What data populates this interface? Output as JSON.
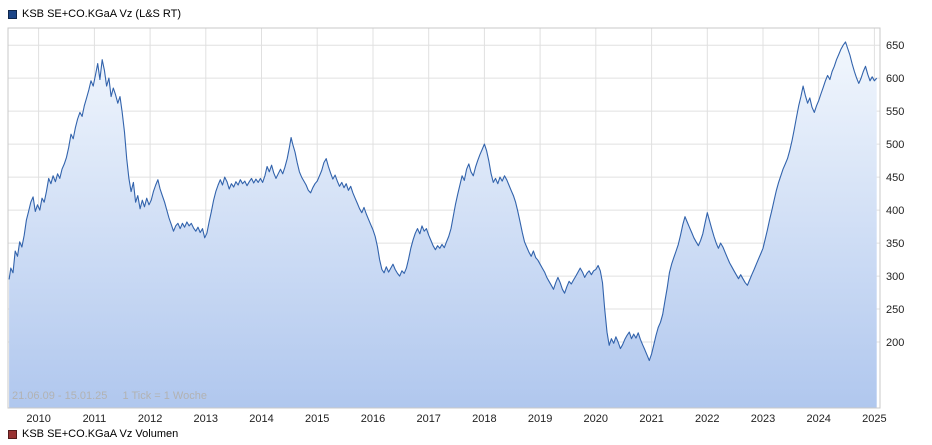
{
  "legend_top": {
    "label": "KSB SE+CO.KGaA Vz (L&S RT)",
    "swatch_color": "#1c4587"
  },
  "legend_bottom": {
    "label": "KSB SE+CO.KGaA Vz Volumen",
    "swatch_color": "#993333"
  },
  "annotation": {
    "period": "21.06.09 - 15.01.25",
    "tick_info": "1 Tick = 1 Woche"
  },
  "chart_data": {
    "type": "area",
    "title": "KSB SE+CO.KGaA Vz (L&S RT)",
    "xlabel": "",
    "ylabel": "",
    "legend_position": "top-left",
    "grid": true,
    "x_ticks": [
      2010,
      2011,
      2012,
      2013,
      2014,
      2015,
      2016,
      2017,
      2018,
      2019,
      2020,
      2021,
      2022,
      2023,
      2024,
      2025
    ],
    "y_ticks": [
      200,
      250,
      300,
      350,
      400,
      450,
      500,
      550,
      600,
      650
    ],
    "xlim": [
      2009.45,
      2025.1
    ],
    "ylim": [
      100,
      676
    ],
    "line_color": "#3263ac",
    "fill_top": "#f2f7fd",
    "fill_bottom": "#b0c7ee",
    "grid_color": "#e0e0e0",
    "border_color": "#c8c8c8",
    "axis_text_color": "#222222",
    "points": [
      [
        2009.47,
        295
      ],
      [
        2009.5,
        312
      ],
      [
        2009.54,
        305
      ],
      [
        2009.58,
        338
      ],
      [
        2009.62,
        330
      ],
      [
        2009.66,
        352
      ],
      [
        2009.7,
        344
      ],
      [
        2009.74,
        362
      ],
      [
        2009.78,
        385
      ],
      [
        2009.82,
        398
      ],
      [
        2009.86,
        412
      ],
      [
        2009.9,
        420
      ],
      [
        2009.94,
        398
      ],
      [
        2009.98,
        408
      ],
      [
        2010.02,
        400
      ],
      [
        2010.06,
        418
      ],
      [
        2010.1,
        412
      ],
      [
        2010.14,
        428
      ],
      [
        2010.18,
        448
      ],
      [
        2010.22,
        440
      ],
      [
        2010.26,
        452
      ],
      [
        2010.3,
        443
      ],
      [
        2010.34,
        455
      ],
      [
        2010.38,
        448
      ],
      [
        2010.42,
        462
      ],
      [
        2010.46,
        470
      ],
      [
        2010.5,
        480
      ],
      [
        2010.54,
        495
      ],
      [
        2010.58,
        515
      ],
      [
        2010.62,
        508
      ],
      [
        2010.66,
        525
      ],
      [
        2010.7,
        538
      ],
      [
        2010.74,
        548
      ],
      [
        2010.78,
        542
      ],
      [
        2010.82,
        558
      ],
      [
        2010.86,
        570
      ],
      [
        2010.9,
        582
      ],
      [
        2010.94,
        596
      ],
      [
        2010.98,
        588
      ],
      [
        2011.02,
        605
      ],
      [
        2011.06,
        622
      ],
      [
        2011.1,
        598
      ],
      [
        2011.14,
        628
      ],
      [
        2011.18,
        612
      ],
      [
        2011.22,
        588
      ],
      [
        2011.26,
        600
      ],
      [
        2011.3,
        572
      ],
      [
        2011.34,
        585
      ],
      [
        2011.38,
        575
      ],
      [
        2011.42,
        562
      ],
      [
        2011.46,
        572
      ],
      [
        2011.5,
        548
      ],
      [
        2011.54,
        518
      ],
      [
        2011.58,
        478
      ],
      [
        2011.62,
        448
      ],
      [
        2011.66,
        428
      ],
      [
        2011.7,
        442
      ],
      [
        2011.74,
        412
      ],
      [
        2011.78,
        422
      ],
      [
        2011.82,
        402
      ],
      [
        2011.86,
        415
      ],
      [
        2011.9,
        405
      ],
      [
        2011.94,
        418
      ],
      [
        2011.98,
        408
      ],
      [
        2012.02,
        415
      ],
      [
        2012.06,
        428
      ],
      [
        2012.1,
        438
      ],
      [
        2012.14,
        446
      ],
      [
        2012.18,
        432
      ],
      [
        2012.22,
        422
      ],
      [
        2012.26,
        412
      ],
      [
        2012.3,
        400
      ],
      [
        2012.34,
        388
      ],
      [
        2012.38,
        378
      ],
      [
        2012.42,
        368
      ],
      [
        2012.46,
        376
      ],
      [
        2012.5,
        380
      ],
      [
        2012.54,
        372
      ],
      [
        2012.58,
        380
      ],
      [
        2012.62,
        374
      ],
      [
        2012.66,
        382
      ],
      [
        2012.7,
        376
      ],
      [
        2012.74,
        380
      ],
      [
        2012.78,
        373
      ],
      [
        2012.82,
        368
      ],
      [
        2012.86,
        374
      ],
      [
        2012.9,
        366
      ],
      [
        2012.94,
        372
      ],
      [
        2012.98,
        358
      ],
      [
        2013.02,
        365
      ],
      [
        2013.06,
        382
      ],
      [
        2013.1,
        398
      ],
      [
        2013.14,
        415
      ],
      [
        2013.18,
        428
      ],
      [
        2013.22,
        438
      ],
      [
        2013.26,
        446
      ],
      [
        2013.3,
        438
      ],
      [
        2013.34,
        450
      ],
      [
        2013.38,
        443
      ],
      [
        2013.42,
        432
      ],
      [
        2013.46,
        440
      ],
      [
        2013.5,
        435
      ],
      [
        2013.54,
        443
      ],
      [
        2013.58,
        438
      ],
      [
        2013.62,
        446
      ],
      [
        2013.66,
        440
      ],
      [
        2013.7,
        444
      ],
      [
        2013.74,
        437
      ],
      [
        2013.78,
        443
      ],
      [
        2013.82,
        448
      ],
      [
        2013.86,
        441
      ],
      [
        2013.9,
        447
      ],
      [
        2013.94,
        442
      ],
      [
        2013.98,
        448
      ],
      [
        2014.02,
        442
      ],
      [
        2014.06,
        452
      ],
      [
        2014.1,
        466
      ],
      [
        2014.14,
        458
      ],
      [
        2014.18,
        468
      ],
      [
        2014.22,
        456
      ],
      [
        2014.26,
        448
      ],
      [
        2014.3,
        455
      ],
      [
        2014.34,
        462
      ],
      [
        2014.38,
        455
      ],
      [
        2014.42,
        465
      ],
      [
        2014.46,
        478
      ],
      [
        2014.5,
        495
      ],
      [
        2014.53,
        510
      ],
      [
        2014.56,
        500
      ],
      [
        2014.6,
        488
      ],
      [
        2014.64,
        472
      ],
      [
        2014.68,
        458
      ],
      [
        2014.72,
        450
      ],
      [
        2014.76,
        444
      ],
      [
        2014.8,
        438
      ],
      [
        2014.84,
        430
      ],
      [
        2014.88,
        426
      ],
      [
        2014.92,
        434
      ],
      [
        2014.96,
        440
      ],
      [
        2015.0,
        444
      ],
      [
        2015.04,
        452
      ],
      [
        2015.08,
        460
      ],
      [
        2015.12,
        472
      ],
      [
        2015.16,
        478
      ],
      [
        2015.2,
        466
      ],
      [
        2015.24,
        456
      ],
      [
        2015.28,
        447
      ],
      [
        2015.32,
        453
      ],
      [
        2015.36,
        444
      ],
      [
        2015.4,
        436
      ],
      [
        2015.44,
        442
      ],
      [
        2015.48,
        434
      ],
      [
        2015.52,
        440
      ],
      [
        2015.56,
        430
      ],
      [
        2015.6,
        436
      ],
      [
        2015.64,
        426
      ],
      [
        2015.68,
        418
      ],
      [
        2015.72,
        410
      ],
      [
        2015.76,
        402
      ],
      [
        2015.8,
        396
      ],
      [
        2015.84,
        404
      ],
      [
        2015.88,
        394
      ],
      [
        2015.92,
        386
      ],
      [
        2015.96,
        378
      ],
      [
        2016.0,
        370
      ],
      [
        2016.04,
        360
      ],
      [
        2016.08,
        345
      ],
      [
        2016.12,
        325
      ],
      [
        2016.16,
        310
      ],
      [
        2016.2,
        305
      ],
      [
        2016.24,
        314
      ],
      [
        2016.28,
        306
      ],
      [
        2016.32,
        312
      ],
      [
        2016.36,
        318
      ],
      [
        2016.4,
        310
      ],
      [
        2016.44,
        304
      ],
      [
        2016.48,
        300
      ],
      [
        2016.52,
        308
      ],
      [
        2016.56,
        304
      ],
      [
        2016.6,
        312
      ],
      [
        2016.64,
        326
      ],
      [
        2016.68,
        342
      ],
      [
        2016.72,
        355
      ],
      [
        2016.76,
        365
      ],
      [
        2016.8,
        372
      ],
      [
        2016.84,
        364
      ],
      [
        2016.88,
        376
      ],
      [
        2016.92,
        368
      ],
      [
        2016.96,
        372
      ],
      [
        2017.0,
        362
      ],
      [
        2017.04,
        354
      ],
      [
        2017.08,
        346
      ],
      [
        2017.12,
        340
      ],
      [
        2017.16,
        346
      ],
      [
        2017.2,
        342
      ],
      [
        2017.24,
        348
      ],
      [
        2017.28,
        343
      ],
      [
        2017.32,
        352
      ],
      [
        2017.36,
        360
      ],
      [
        2017.4,
        372
      ],
      [
        2017.44,
        390
      ],
      [
        2017.48,
        408
      ],
      [
        2017.52,
        424
      ],
      [
        2017.56,
        438
      ],
      [
        2017.6,
        452
      ],
      [
        2017.64,
        445
      ],
      [
        2017.68,
        462
      ],
      [
        2017.72,
        470
      ],
      [
        2017.76,
        458
      ],
      [
        2017.8,
        452
      ],
      [
        2017.84,
        465
      ],
      [
        2017.88,
        475
      ],
      [
        2017.92,
        484
      ],
      [
        2017.96,
        492
      ],
      [
        2018.0,
        500
      ],
      [
        2018.04,
        490
      ],
      [
        2018.08,
        474
      ],
      [
        2018.12,
        455
      ],
      [
        2018.16,
        442
      ],
      [
        2018.2,
        448
      ],
      [
        2018.24,
        440
      ],
      [
        2018.28,
        450
      ],
      [
        2018.32,
        444
      ],
      [
        2018.36,
        452
      ],
      [
        2018.4,
        446
      ],
      [
        2018.44,
        438
      ],
      [
        2018.48,
        430
      ],
      [
        2018.52,
        422
      ],
      [
        2018.56,
        412
      ],
      [
        2018.6,
        398
      ],
      [
        2018.64,
        382
      ],
      [
        2018.68,
        366
      ],
      [
        2018.72,
        352
      ],
      [
        2018.76,
        344
      ],
      [
        2018.8,
        336
      ],
      [
        2018.84,
        330
      ],
      [
        2018.88,
        338
      ],
      [
        2018.92,
        328
      ],
      [
        2018.96,
        324
      ],
      [
        2019.0,
        318
      ],
      [
        2019.04,
        312
      ],
      [
        2019.08,
        306
      ],
      [
        2019.12,
        298
      ],
      [
        2019.16,
        292
      ],
      [
        2019.2,
        286
      ],
      [
        2019.24,
        280
      ],
      [
        2019.28,
        290
      ],
      [
        2019.32,
        298
      ],
      [
        2019.36,
        290
      ],
      [
        2019.4,
        280
      ],
      [
        2019.44,
        274
      ],
      [
        2019.48,
        284
      ],
      [
        2019.52,
        292
      ],
      [
        2019.56,
        288
      ],
      [
        2019.6,
        294
      ],
      [
        2019.64,
        300
      ],
      [
        2019.68,
        306
      ],
      [
        2019.72,
        312
      ],
      [
        2019.76,
        306
      ],
      [
        2019.8,
        298
      ],
      [
        2019.84,
        304
      ],
      [
        2019.88,
        308
      ],
      [
        2019.92,
        302
      ],
      [
        2019.96,
        308
      ],
      [
        2020.0,
        310
      ],
      [
        2020.04,
        316
      ],
      [
        2020.08,
        308
      ],
      [
        2020.12,
        290
      ],
      [
        2020.16,
        250
      ],
      [
        2020.2,
        215
      ],
      [
        2020.24,
        195
      ],
      [
        2020.28,
        205
      ],
      [
        2020.32,
        198
      ],
      [
        2020.36,
        208
      ],
      [
        2020.4,
        200
      ],
      [
        2020.44,
        190
      ],
      [
        2020.48,
        196
      ],
      [
        2020.52,
        204
      ],
      [
        2020.56,
        210
      ],
      [
        2020.6,
        215
      ],
      [
        2020.64,
        205
      ],
      [
        2020.68,
        212
      ],
      [
        2020.72,
        206
      ],
      [
        2020.76,
        214
      ],
      [
        2020.8,
        204
      ],
      [
        2020.84,
        196
      ],
      [
        2020.88,
        188
      ],
      [
        2020.92,
        180
      ],
      [
        2020.96,
        172
      ],
      [
        2021.0,
        182
      ],
      [
        2021.04,
        196
      ],
      [
        2021.08,
        210
      ],
      [
        2021.12,
        222
      ],
      [
        2021.16,
        230
      ],
      [
        2021.2,
        242
      ],
      [
        2021.24,
        262
      ],
      [
        2021.28,
        282
      ],
      [
        2021.32,
        305
      ],
      [
        2021.36,
        318
      ],
      [
        2021.4,
        328
      ],
      [
        2021.44,
        338
      ],
      [
        2021.48,
        348
      ],
      [
        2021.52,
        362
      ],
      [
        2021.56,
        378
      ],
      [
        2021.6,
        390
      ],
      [
        2021.64,
        382
      ],
      [
        2021.68,
        374
      ],
      [
        2021.72,
        366
      ],
      [
        2021.76,
        358
      ],
      [
        2021.8,
        352
      ],
      [
        2021.84,
        346
      ],
      [
        2021.88,
        354
      ],
      [
        2021.92,
        364
      ],
      [
        2021.96,
        380
      ],
      [
        2022.0,
        396
      ],
      [
        2022.04,
        384
      ],
      [
        2022.08,
        372
      ],
      [
        2022.12,
        360
      ],
      [
        2022.16,
        350
      ],
      [
        2022.2,
        342
      ],
      [
        2022.24,
        350
      ],
      [
        2022.28,
        344
      ],
      [
        2022.32,
        336
      ],
      [
        2022.36,
        328
      ],
      [
        2022.4,
        320
      ],
      [
        2022.44,
        314
      ],
      [
        2022.48,
        308
      ],
      [
        2022.52,
        302
      ],
      [
        2022.56,
        296
      ],
      [
        2022.6,
        302
      ],
      [
        2022.64,
        296
      ],
      [
        2022.68,
        290
      ],
      [
        2022.72,
        286
      ],
      [
        2022.76,
        294
      ],
      [
        2022.8,
        302
      ],
      [
        2022.84,
        310
      ],
      [
        2022.88,
        318
      ],
      [
        2022.92,
        326
      ],
      [
        2022.96,
        334
      ],
      [
        2023.0,
        342
      ],
      [
        2023.04,
        356
      ],
      [
        2023.08,
        370
      ],
      [
        2023.12,
        386
      ],
      [
        2023.16,
        400
      ],
      [
        2023.2,
        415
      ],
      [
        2023.24,
        430
      ],
      [
        2023.28,
        442
      ],
      [
        2023.32,
        452
      ],
      [
        2023.36,
        462
      ],
      [
        2023.4,
        470
      ],
      [
        2023.44,
        478
      ],
      [
        2023.48,
        490
      ],
      [
        2023.52,
        505
      ],
      [
        2023.56,
        522
      ],
      [
        2023.6,
        540
      ],
      [
        2023.64,
        558
      ],
      [
        2023.68,
        572
      ],
      [
        2023.72,
        588
      ],
      [
        2023.76,
        574
      ],
      [
        2023.8,
        562
      ],
      [
        2023.84,
        570
      ],
      [
        2023.88,
        556
      ],
      [
        2023.92,
        548
      ],
      [
        2023.96,
        558
      ],
      [
        2024.0,
        566
      ],
      [
        2024.04,
        576
      ],
      [
        2024.08,
        586
      ],
      [
        2024.12,
        596
      ],
      [
        2024.16,
        604
      ],
      [
        2024.2,
        598
      ],
      [
        2024.24,
        610
      ],
      [
        2024.28,
        618
      ],
      [
        2024.32,
        628
      ],
      [
        2024.36,
        636
      ],
      [
        2024.4,
        644
      ],
      [
        2024.44,
        650
      ],
      [
        2024.48,
        655
      ],
      [
        2024.52,
        645
      ],
      [
        2024.56,
        635
      ],
      [
        2024.6,
        622
      ],
      [
        2024.64,
        610
      ],
      [
        2024.68,
        600
      ],
      [
        2024.72,
        592
      ],
      [
        2024.76,
        600
      ],
      [
        2024.8,
        610
      ],
      [
        2024.84,
        618
      ],
      [
        2024.88,
        606
      ],
      [
        2024.92,
        596
      ],
      [
        2024.96,
        602
      ],
      [
        2025.0,
        596
      ],
      [
        2025.04,
        600
      ]
    ]
  }
}
